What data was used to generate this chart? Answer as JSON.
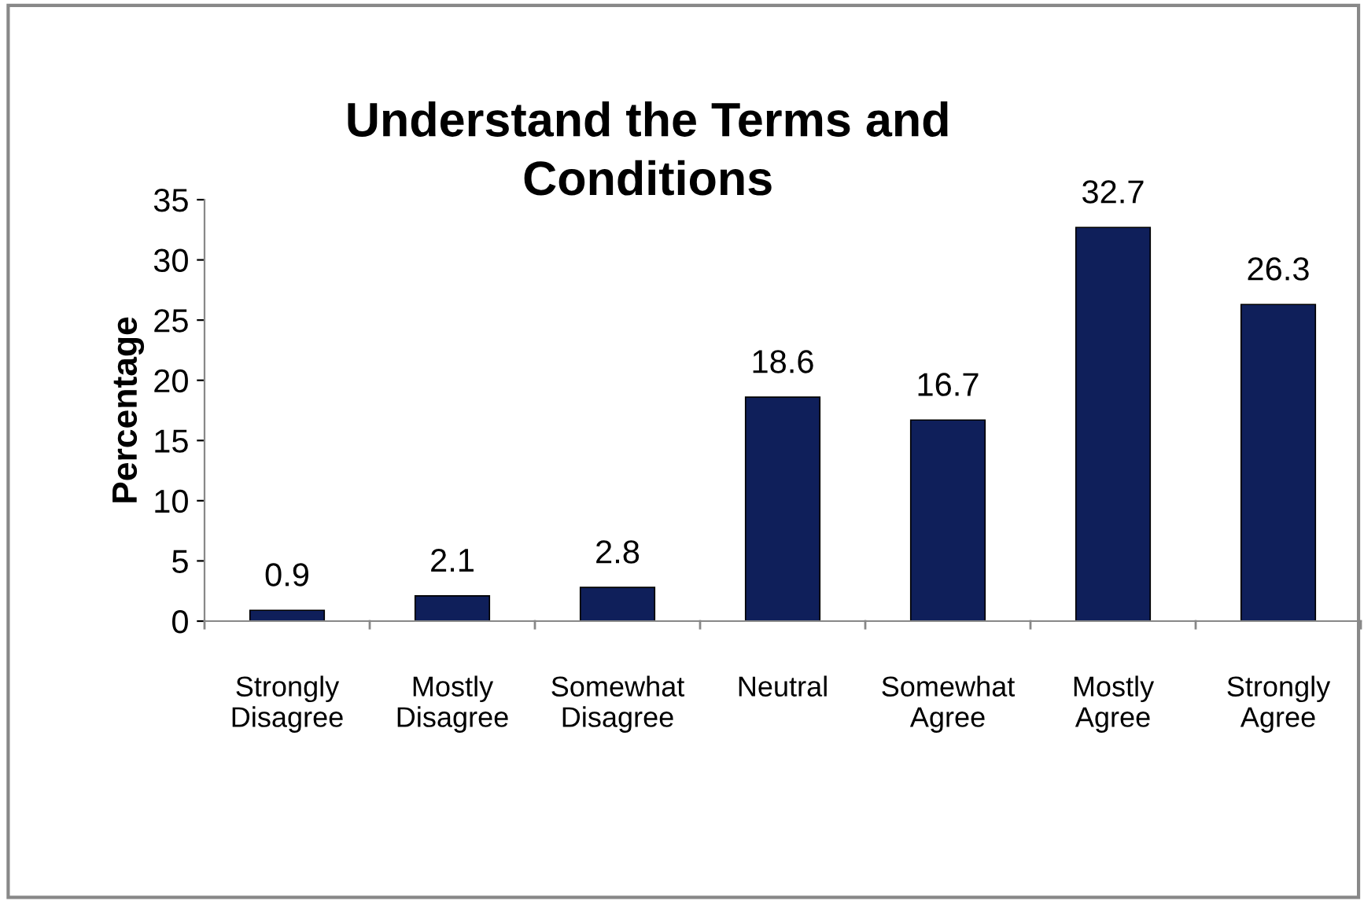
{
  "chart_data": {
    "type": "bar",
    "title": "Understand the Terms and\nConditions",
    "ylabel": "Percentage",
    "categories": [
      "Strongly\nDisagree",
      "Mostly\nDisagree",
      "Somewhat\nDisagree",
      "Neutral",
      "Somewhat\nAgree",
      "Mostly\nAgree",
      "Strongly\nAgree"
    ],
    "values": [
      0.9,
      2.1,
      2.8,
      18.6,
      16.7,
      32.7,
      26.3
    ],
    "color": "#0f1f5a",
    "ylim": [
      0,
      35
    ],
    "yticks": [
      0,
      5,
      10,
      15,
      20,
      25,
      30,
      35
    ],
    "grid": false,
    "data_labels": true,
    "legend": false
  }
}
